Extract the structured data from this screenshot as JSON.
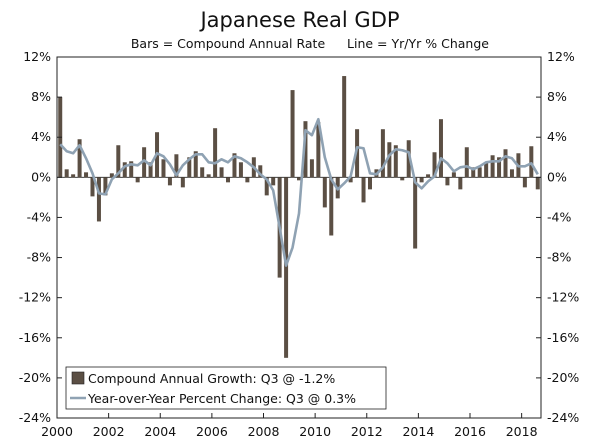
{
  "chart_data": {
    "type": "bar",
    "title": "Japanese Real GDP",
    "subtitle_left": "Bars = Compound Annual Rate",
    "subtitle_right": "Line = Yr/Yr % Change",
    "ylim": [
      -24,
      12
    ],
    "y_ticks": [
      12,
      8,
      4,
      0,
      -4,
      -8,
      -12,
      -16,
      -20,
      -24
    ],
    "y_tick_labels": [
      "12%",
      "8%",
      "4%",
      "0%",
      "-4%",
      "-8%",
      "-12%",
      "-16%",
      "-20%",
      "-24%"
    ],
    "x_range": [
      2000,
      2018.75
    ],
    "x_ticks": [
      2000,
      2002,
      2004,
      2006,
      2008,
      2010,
      2012,
      2014,
      2016,
      2018
    ],
    "x_tick_labels": [
      "2000",
      "2002",
      "2004",
      "2006",
      "2008",
      "2010",
      "2012",
      "2014",
      "2016",
      "2018"
    ],
    "series": [
      {
        "name": "Compound Annual Growth: Q3 @ -1.2%",
        "type": "bar",
        "color": "#5b4f44",
        "start_year": 2000,
        "values": [
          8.0,
          0.8,
          0.3,
          3.8,
          0.5,
          -1.9,
          -4.4,
          -1.8,
          0.4,
          3.2,
          1.5,
          1.6,
          -0.5,
          3.0,
          1.5,
          4.5,
          1.8,
          -0.8,
          2.3,
          -1.0,
          2.0,
          2.6,
          1.0,
          0.3,
          4.9,
          1.0,
          -0.5,
          2.4,
          1.5,
          -0.5,
          2.0,
          1.2,
          -1.8,
          -0.8,
          -10.0,
          -18.0,
          8.7,
          -0.3,
          5.6,
          1.8,
          5.5,
          -3.0,
          -5.8,
          -2.1,
          10.1,
          -0.5,
          4.8,
          -2.5,
          -1.2,
          0.8,
          4.8,
          3.5,
          3.2,
          -0.3,
          3.7,
          -7.1,
          -0.5,
          0.3,
          2.5,
          5.8,
          -0.8,
          0.5,
          -1.2,
          3.0,
          1.0,
          1.0,
          1.5,
          2.2,
          2.0,
          2.8,
          0.8,
          2.4,
          -1.0,
          3.1,
          -1.2
        ]
      },
      {
        "name": "Year-over-Year Percent Change: Q3 @ 0.3%",
        "type": "line",
        "color": "#8fa2b3",
        "start_year": 2000,
        "values": [
          3.3,
          2.6,
          2.4,
          3.2,
          1.9,
          0.4,
          -1.6,
          -1.7,
          -0.2,
          0.4,
          1.1,
          1.3,
          1.2,
          1.7,
          1.2,
          2.4,
          2.1,
          1.3,
          0.2,
          1.2,
          1.8,
          2.3,
          2.3,
          1.5,
          1.4,
          1.8,
          1.5,
          2.1,
          1.9,
          1.5,
          1.0,
          0.3,
          -0.2,
          -1.3,
          -5.0,
          -8.8,
          -7.0,
          -3.6,
          4.7,
          4.2,
          5.8,
          2.0,
          -0.2,
          -1.2,
          -0.6,
          0.1,
          3.0,
          2.9,
          0.4,
          0.3,
          1.0,
          2.2,
          2.8,
          2.7,
          2.5,
          -0.5,
          -1.1,
          -0.4,
          0.1,
          1.9,
          1.4,
          0.6,
          1.0,
          1.1,
          0.8,
          1.1,
          1.5,
          1.6,
          1.6,
          2.1,
          1.9,
          1.1,
          1.1,
          1.4,
          0.3
        ]
      }
    ],
    "legend": [
      {
        "label": "Compound Annual Growth: Q3 @ -1.2%",
        "marker": "box",
        "color": "#5b4f44"
      },
      {
        "label": "Year-over-Year Percent Change: Q3 @ 0.3%",
        "marker": "line",
        "color": "#8fa2b3"
      }
    ],
    "legend_position": "bottom-left"
  }
}
